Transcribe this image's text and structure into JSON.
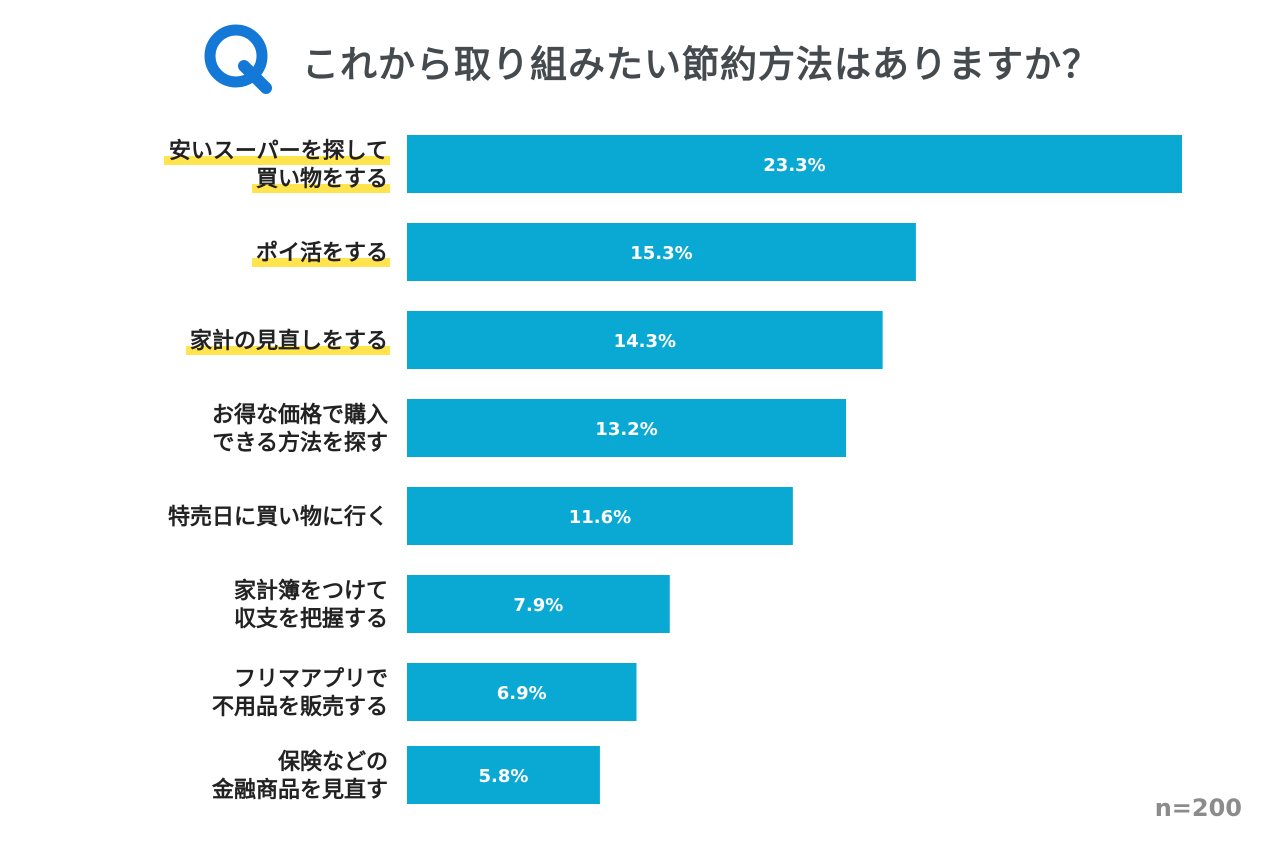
{
  "header": {
    "q_letter": "Q",
    "title": "これから取り組みたい節約方法はありますか？"
  },
  "colors": {
    "bar": "#0aa9d3",
    "accent_blue": "#1478d6",
    "highlight": "#ffe44d",
    "title_text": "#444a4d",
    "label_text": "#222222",
    "value_text": "#ffffff",
    "note_text": "#8c8c8c"
  },
  "note": "n=200",
  "chart_data": {
    "type": "bar",
    "orientation": "horizontal",
    "title": "これから取り組みたい節約方法はありますか？",
    "xlabel": "",
    "ylabel": "",
    "xlim": [
      0,
      23.3
    ],
    "unit": "%",
    "categories": [
      [
        "安いスーパーを探して",
        "買い物をする"
      ],
      [
        "ポイ活をする"
      ],
      [
        "家計の見直しをする"
      ],
      [
        "お得な価格で購入",
        "できる方法を探す"
      ],
      [
        "特売日に買い物に行く"
      ],
      [
        "家計簿をつけて",
        "収支を把握する"
      ],
      [
        "フリマアプリで",
        "不用品を販売する"
      ],
      [
        "保険などの",
        "金融商品を見直す"
      ]
    ],
    "values": [
      23.3,
      15.3,
      14.3,
      13.2,
      11.6,
      7.9,
      6.9,
      5.8
    ],
    "value_labels": [
      "23.3%",
      "15.3%",
      "14.3%",
      "13.2%",
      "11.6%",
      "7.9%",
      "6.9%",
      "5.8%"
    ],
    "highlighted": [
      true,
      true,
      true,
      false,
      false,
      false,
      false,
      false
    ]
  }
}
